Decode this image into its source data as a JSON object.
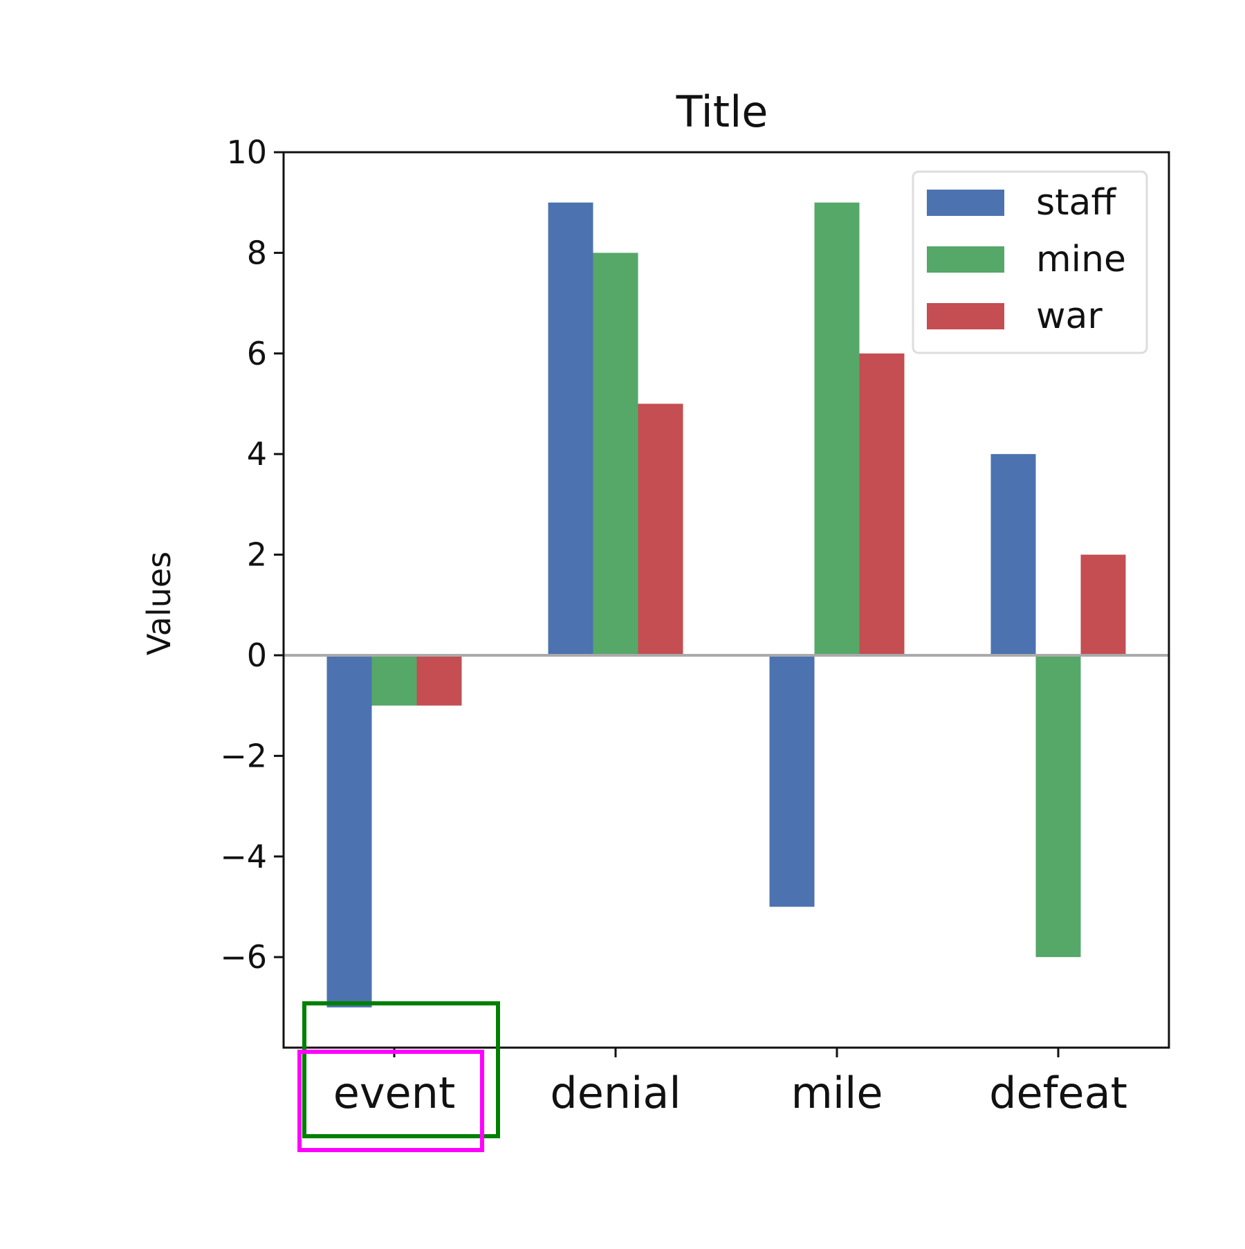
{
  "chart_data": {
    "type": "bar",
    "title": "Title",
    "xlabel": "",
    "ylabel": "Values",
    "categories": [
      "event",
      "denial",
      "mile",
      "defeat"
    ],
    "series": [
      {
        "name": "staff",
        "color": "#4c72b0",
        "values": [
          -7,
          9,
          -5,
          4
        ]
      },
      {
        "name": "mine",
        "color": "#55a868",
        "values": [
          -1,
          8,
          9,
          -6
        ]
      },
      {
        "name": "war",
        "color": "#c44e52",
        "values": [
          -1,
          5,
          6,
          2
        ]
      }
    ],
    "ylim": [
      -7.8,
      10
    ],
    "yticks": [
      10,
      8,
      6,
      4,
      2,
      0,
      -2,
      -4,
      -6
    ],
    "ytick_labels": [
      "10",
      "8",
      "6",
      "4",
      "2",
      "0",
      "−2",
      "−4",
      "−6"
    ],
    "zero_line": true,
    "zero_line_color": "#aaaaaa",
    "grid": false,
    "legend_position": "top-right",
    "highlight_colors": [
      "#008000",
      "#ff00ff"
    ]
  }
}
